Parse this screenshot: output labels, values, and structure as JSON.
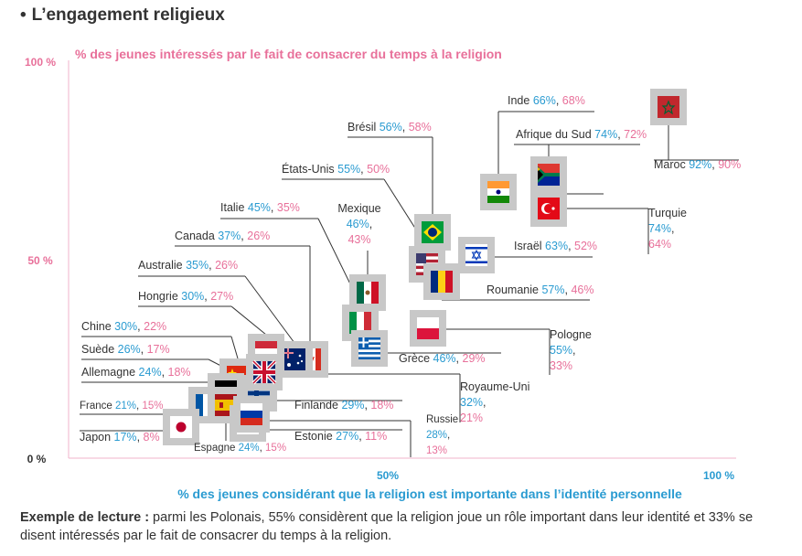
{
  "title": "L’engagement religieux",
  "title_bullet": "•",
  "colors": {
    "pink": "#e8709a",
    "blue": "#2a9bd1",
    "dark": "#333333",
    "frame": "#c8c8c8",
    "axis": "#f2b3cb"
  },
  "reading_note": {
    "label": "Exemple de lecture :",
    "text": " parmi les Polonais, 55% considèrent que la religion joue un rôle important dans leur identité et 33% se disent intéressés par le fait de consacrer du temps à la religion."
  },
  "chart_data": {
    "type": "scatter",
    "title": "L’engagement religieux",
    "xlabel": "% des jeunes considérant que la religion est importante dans l’identité personnelle",
    "ylabel": "% des jeunes intéressés par le fait de consacrer du temps à la religion",
    "xlim": [
      0,
      100
    ],
    "ylim": [
      0,
      100
    ],
    "x_ticks": [
      "50%",
      "100 %"
    ],
    "y_ticks": [
      "0 %",
      "50 %",
      "100 %"
    ],
    "points": [
      {
        "country": "Maroc",
        "x": 92,
        "y": 90,
        "x_label": "92%",
        "y_label": "90%",
        "flag": "morocco-flag"
      },
      {
        "country": "Inde",
        "x": 66,
        "y": 68,
        "x_label": "66%",
        "y_label": "68%",
        "flag": "india-flag"
      },
      {
        "country": "Afrique du Sud",
        "x": 74,
        "y": 72,
        "x_label": "74%",
        "y_label": "72%",
        "flag": "south-africa-flag"
      },
      {
        "country": "Turquie",
        "x": 74,
        "y": 64,
        "x_label": "74%",
        "y_label": "64%",
        "flag": "turkey-flag"
      },
      {
        "country": "Brésil",
        "x": 56,
        "y": 58,
        "x_label": "56%",
        "y_label": "58%",
        "flag": "brazil-flag"
      },
      {
        "country": "États-Unis",
        "x": 55,
        "y": 50,
        "x_label": "55%",
        "y_label": "50%",
        "flag": "usa-flag"
      },
      {
        "country": "Israël",
        "x": 63,
        "y": 52,
        "x_label": "63%",
        "y_label": "52%",
        "flag": "israel-flag"
      },
      {
        "country": "Roumanie",
        "x": 57,
        "y": 46,
        "x_label": "57%",
        "y_label": "46%",
        "flag": "romania-flag"
      },
      {
        "country": "Mexique",
        "x": 46,
        "y": 43,
        "x_label": "46%",
        "y_label": "43%",
        "flag": "mexico-flag"
      },
      {
        "country": "Italie",
        "x": 45,
        "y": 35,
        "x_label": "45%",
        "y_label": "35%",
        "flag": "italy-flag"
      },
      {
        "country": "Pologne",
        "x": 55,
        "y": 33,
        "x_label": "55%",
        "y_label": "33%",
        "flag": "poland-flag"
      },
      {
        "country": "Grèce",
        "x": 46,
        "y": 29,
        "x_label": "46%",
        "y_label": "29%",
        "flag": "greece-flag"
      },
      {
        "country": "Canada",
        "x": 37,
        "y": 26,
        "x_label": "37%",
        "y_label": "26%",
        "flag": "canada-flag"
      },
      {
        "country": "Australie",
        "x": 35,
        "y": 26,
        "x_label": "35%",
        "y_label": "26%",
        "flag": "australia-flag"
      },
      {
        "country": "Hongrie",
        "x": 30,
        "y": 27,
        "x_label": "30%",
        "y_label": "27%",
        "flag": "hungary-flag"
      },
      {
        "country": "Chine",
        "x": 30,
        "y": 22,
        "x_label": "30%",
        "y_label": "22%",
        "flag": "china-flag"
      },
      {
        "country": "Royaume-Uni",
        "x": 32,
        "y": 21,
        "x_label": "32%",
        "y_label": "21%",
        "flag": "uk-flag"
      },
      {
        "country": "Suède",
        "x": 26,
        "y": 17,
        "x_label": "26%",
        "y_label": "17%",
        "flag": "sweden-flag"
      },
      {
        "country": "Finlande",
        "x": 29,
        "y": 18,
        "x_label": "29%",
        "y_label": "18%",
        "flag": "finland-flag"
      },
      {
        "country": "Allemagne",
        "x": 24,
        "y": 18,
        "x_label": "24%",
        "y_label": "18%",
        "flag": "germany-flag"
      },
      {
        "country": "France",
        "x": 21,
        "y": 15,
        "x_label": "21%",
        "y_label": "15%",
        "flag": "france-flag"
      },
      {
        "country": "Espagne",
        "x": 24,
        "y": 15,
        "x_label": "24%",
        "y_label": "15%",
        "flag": "spain-flag"
      },
      {
        "country": "Russie",
        "x": 28,
        "y": 13,
        "x_label": "28%",
        "y_label": "13%",
        "flag": "russia-flag"
      },
      {
        "country": "Estonie",
        "x": 27,
        "y": 11,
        "x_label": "27%",
        "y_label": "11%",
        "flag": "estonia-flag"
      },
      {
        "country": "Japon",
        "x": 17,
        "y": 8,
        "x_label": "17%",
        "y_label": "8%",
        "flag": "japan-flag"
      }
    ]
  }
}
